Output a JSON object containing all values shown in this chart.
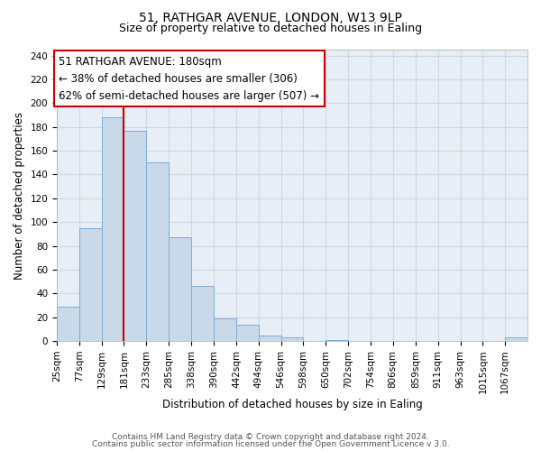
{
  "title": "51, RATHGAR AVENUE, LONDON, W13 9LP",
  "subtitle": "Size of property relative to detached houses in Ealing",
  "xlabel": "Distribution of detached houses by size in Ealing",
  "ylabel": "Number of detached properties",
  "bin_labels": [
    "25sqm",
    "77sqm",
    "129sqm",
    "181sqm",
    "233sqm",
    "285sqm",
    "338sqm",
    "390sqm",
    "442sqm",
    "494sqm",
    "546sqm",
    "598sqm",
    "650sqm",
    "702sqm",
    "754sqm",
    "806sqm",
    "859sqm",
    "911sqm",
    "963sqm",
    "1015sqm",
    "1067sqm"
  ],
  "bin_edges": [
    25,
    77,
    129,
    181,
    233,
    285,
    338,
    390,
    442,
    494,
    546,
    598,
    650,
    702,
    754,
    806,
    859,
    911,
    963,
    1015,
    1067,
    1119
  ],
  "bar_heights": [
    29,
    95,
    188,
    177,
    150,
    87,
    46,
    19,
    14,
    5,
    3,
    0,
    1,
    0,
    0,
    0,
    0,
    0,
    0,
    0,
    3
  ],
  "bar_face_color": "#c9d9ea",
  "bar_edge_color": "#7bafd4",
  "property_line_x": 181,
  "property_line_color": "#cc0000",
  "annotation_line1": "51 RATHGAR AVENUE: 180sqm",
  "annotation_line2": "← 38% of detached houses are smaller (306)",
  "annotation_line3": "62% of semi-detached houses are larger (507) →",
  "ylim": [
    0,
    245
  ],
  "yticks": [
    0,
    20,
    40,
    60,
    80,
    100,
    120,
    140,
    160,
    180,
    200,
    220,
    240
  ],
  "grid_color": "#d0d8e4",
  "background_color": "#e8eef5",
  "footer_line1": "Contains HM Land Registry data © Crown copyright and database right 2024.",
  "footer_line2": "Contains public sector information licensed under the Open Government Licence v 3.0.",
  "title_fontsize": 10,
  "subtitle_fontsize": 9,
  "axis_label_fontsize": 8.5,
  "tick_label_fontsize": 7.5,
  "annotation_fontsize": 8.5,
  "footer_fontsize": 6.5
}
